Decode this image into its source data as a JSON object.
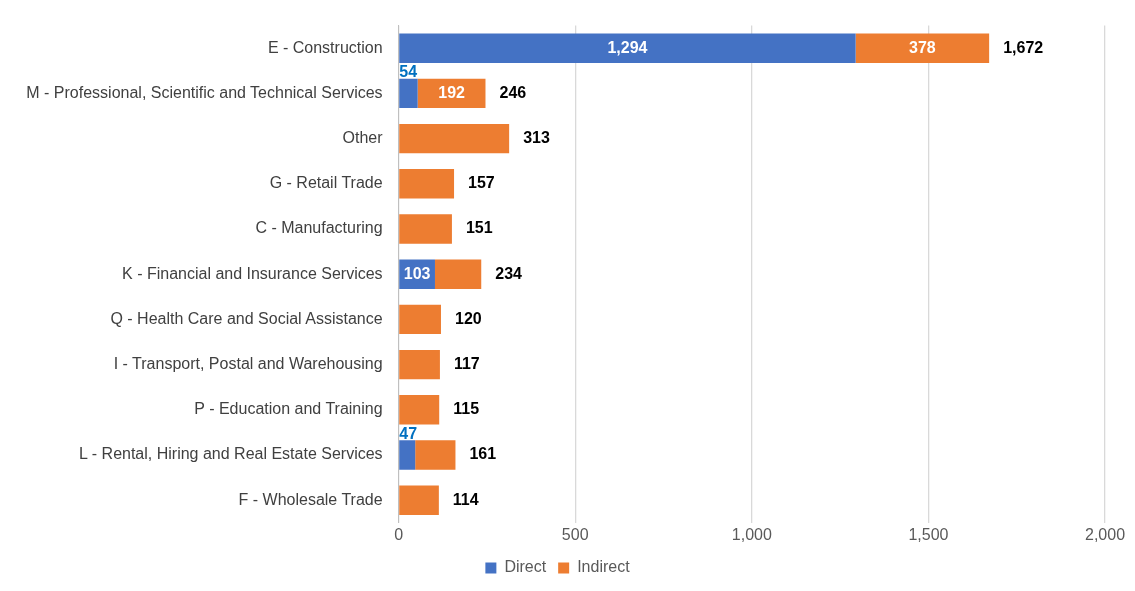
{
  "chart_data": {
    "type": "bar",
    "orientation": "horizontal",
    "stacked": true,
    "categories": [
      "E - Construction",
      "M - Professional, Scientific and Technical Services",
      "Other",
      "G - Retail Trade",
      "C - Manufacturing",
      "K - Financial and Insurance Services",
      "Q - Health Care and Social Assistance",
      "I - Transport, Postal and Warehousing",
      "P - Education and Training",
      "L - Rental, Hiring and Real Estate Services",
      "F - Wholesale Trade"
    ],
    "series": [
      {
        "name": "Direct",
        "color": "#4472c4",
        "values": [
          1294,
          54,
          null,
          null,
          null,
          103,
          null,
          null,
          null,
          47,
          null
        ],
        "value_labels": [
          "1,294",
          "54",
          null,
          null,
          null,
          "103",
          null,
          null,
          null,
          "47",
          null
        ]
      },
      {
        "name": "Indirect",
        "color": "#ed7d31",
        "values": [
          378,
          192,
          313,
          157,
          151,
          131,
          120,
          117,
          115,
          114,
          114
        ],
        "value_labels": [
          "378",
          "192",
          null,
          null,
          null,
          null,
          null,
          null,
          null,
          null,
          null
        ]
      }
    ],
    "totals": [
      "1,672",
      "246",
      "313",
      "157",
      "151",
      "234",
      "120",
      "117",
      "115",
      "161",
      "114"
    ],
    "xlim": [
      0,
      2000
    ],
    "xticks": [
      0,
      500,
      {
        "value": 1000,
        "label": "1,000"
      },
      {
        "value": 1500,
        "label": "1,500"
      },
      {
        "value": 2000,
        "label": "2,000"
      }
    ],
    "grid": "x",
    "legend": "bottom"
  }
}
